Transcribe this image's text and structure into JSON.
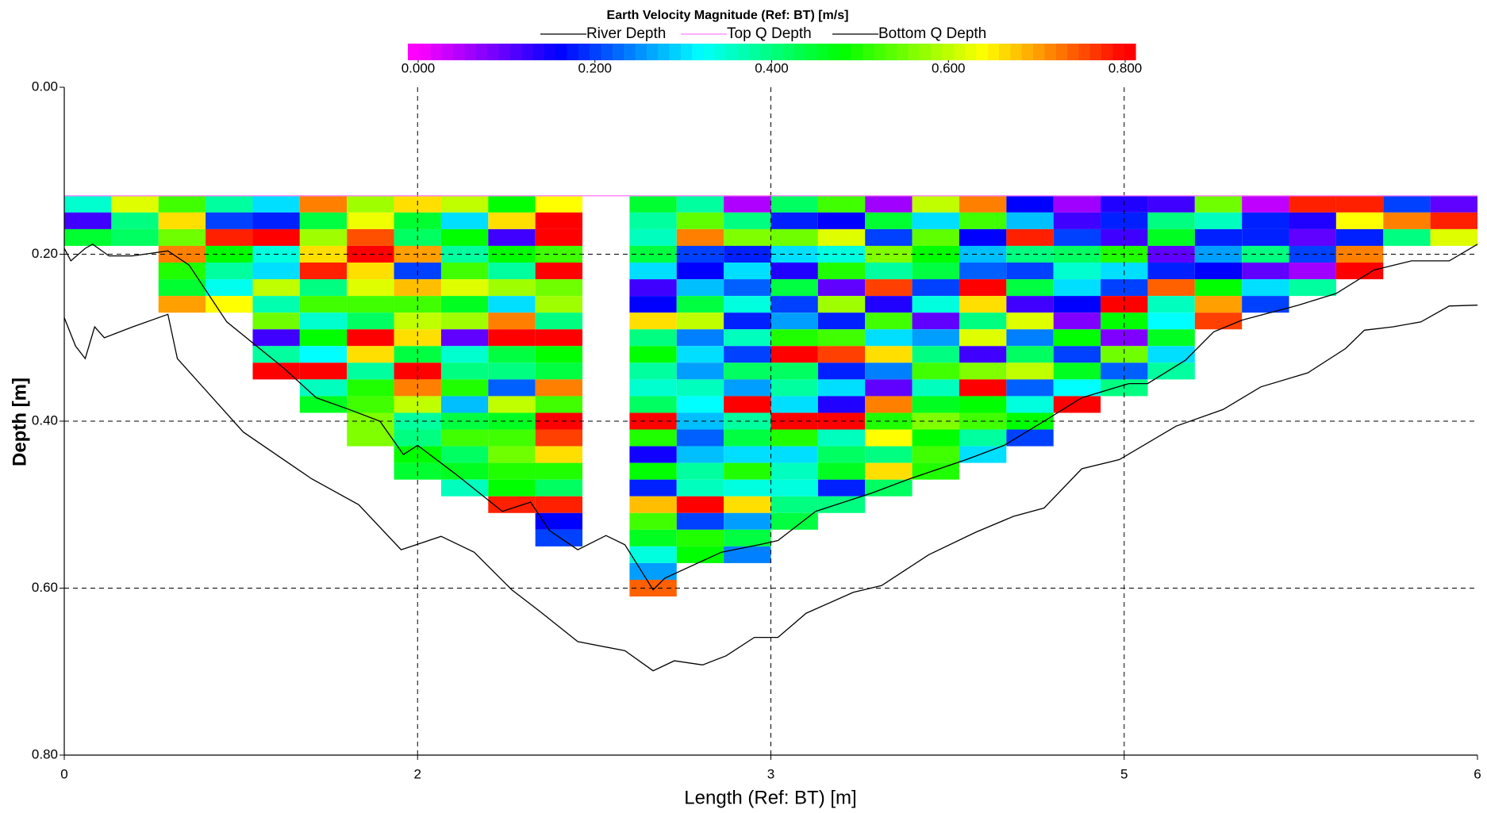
{
  "chart_data": {
    "type": "heatmap",
    "title": "Earth Velocity Magnitude (Ref: BT) [m/s]",
    "x_label": "Length (Ref: BT) [m]",
    "y_label": "Depth [m]",
    "xlim": [
      0,
      6
    ],
    "ylim": [
      0.8,
      0
    ],
    "xticks": [
      0,
      {
        "value": 1.5,
        "label": "2"
      },
      3,
      {
        "value": 4.5,
        "label": "5"
      },
      6
    ],
    "yticks": [
      {
        "value": 0,
        "label": "0.00"
      },
      {
        "value": 0.2,
        "label": "0.20"
      },
      {
        "value": 0.4,
        "label": "0.40"
      },
      {
        "value": 0.6,
        "label": "0.60"
      },
      {
        "value": 0.8,
        "label": "0.80"
      }
    ],
    "grid": true,
    "clim": [
      0,
      0.8
    ],
    "colorscale": [
      "#ff00ff",
      "#0000ff",
      "#00ffff",
      "#00ff00",
      "#ffff00",
      "#ff0000"
    ],
    "cticks": [
      {
        "value": 0,
        "label": "0.000"
      },
      {
        "value": 0.2,
        "label": "0.200"
      },
      {
        "value": 0.4,
        "label": "0.400"
      },
      {
        "value": 0.6,
        "label": "0.600"
      },
      {
        "value": 0.8,
        "label": "0.800"
      }
    ],
    "x_edges": [
      0,
      0.2,
      0.4,
      0.6,
      0.8,
      1.0,
      1.2,
      1.4,
      1.6,
      1.8,
      2.0,
      2.2,
      2.4,
      2.6,
      2.8,
      3.0,
      3.2,
      3.4,
      3.6,
      3.8,
      4.0,
      4.2,
      4.4,
      4.6,
      4.8,
      5.0,
      5.2,
      5.4,
      5.6,
      5.8,
      6.0
    ],
    "y_edges": [
      0.13,
      0.15,
      0.17,
      0.19,
      0.21,
      0.23,
      0.25,
      0.27,
      0.29,
      0.31,
      0.33,
      0.35,
      0.37,
      0.39,
      0.41,
      0.43,
      0.45,
      0.47,
      0.49,
      0.51,
      0.53,
      0.55,
      0.57,
      0.59,
      0.61
    ],
    "values": [
      [
        0.35,
        0.12,
        0.45
      ],
      [
        0.62,
        0.4,
        0.42
      ],
      [
        0.52,
        0.66,
        0.55,
        0.72,
        0.5,
        0.45,
        0.7
      ],
      [
        0.38,
        0.2,
        0.78,
        0.48,
        0.38,
        0.33,
        0.64
      ],
      [
        0.3,
        0.18,
        0.8,
        0.34,
        0.3,
        0.6,
        0.37,
        0.55,
        0.12,
        0.38,
        0.8
      ],
      [
        0.72,
        0.44,
        0.58,
        0.66,
        0.78,
        0.4,
        0.52,
        0.35,
        0.48,
        0.32,
        0.8,
        0.36,
        0.46
      ],
      [
        0.58,
        0.63,
        0.75,
        0.8,
        0.66,
        0.62,
        0.52,
        0.42,
        0.8,
        0.66,
        0.38,
        0.5,
        0.52,
        0.56,
        0.56
      ],
      [
        0.66,
        0.45,
        0.42,
        0.7,
        0.2,
        0.68,
        0.52,
        0.6,
        0.66,
        0.44,
        0.8,
        0.72,
        0.6,
        0.38,
        0.4,
        0.48,
        0.45
      ],
      [
        0.6,
        0.3,
        0.48,
        0.38,
        0.52,
        0.62,
        0.46,
        0.58,
        0.1,
        0.35,
        0.4,
        0.5,
        0.28,
        0.44,
        0.52,
        0.42,
        0.46,
        0.36
      ],
      [
        0.48,
        0.66,
        0.12,
        0.48,
        0.38,
        0.58,
        0.3,
        0.72,
        0.8,
        0.44,
        0.4,
        0.22,
        0.6,
        0.46,
        0.52,
        0.55,
        0.5,
        0.48,
        0.78
      ],
      [
        0.64,
        0.8,
        0.8,
        0.52,
        0.8,
        0.55,
        0.58,
        0.4,
        0.8,
        0.48,
        0.44,
        0.72,
        0.52,
        0.8,
        0.76,
        0.66,
        0.5,
        0.42,
        0.78,
        0.16,
        0.2
      ],
      [],
      [
        0.45,
        0.38,
        0.36,
        0.44,
        0.3,
        0.12,
        0.16,
        0.66,
        0.4,
        0.48,
        0.38,
        0.35,
        0.42,
        0.8,
        0.5,
        0.15,
        0.48,
        0.18,
        0.68,
        0.52,
        0.46,
        0.34,
        0.26,
        0.74
      ],
      [
        0.38,
        0.54,
        0.72,
        0.2,
        0.16,
        0.28,
        0.44,
        0.6,
        0.24,
        0.3,
        0.26,
        0.36,
        0.32,
        0.28,
        0.22,
        0.28,
        0.38,
        0.36,
        0.8,
        0.2,
        0.5,
        0.48
      ],
      [
        0.05,
        0.4,
        0.56,
        0.18,
        0.3,
        0.22,
        0.34,
        0.18,
        0.36,
        0.2,
        0.42,
        0.26,
        0.8,
        0.38,
        0.44,
        0.3,
        0.5,
        0.34,
        0.66,
        0.26,
        0.44,
        0.24
      ],
      [
        0.42,
        0.18,
        0.55,
        0.3,
        0.14,
        0.44,
        0.2,
        0.26,
        0.5,
        0.8,
        0.42,
        0.38,
        0.3,
        0.8,
        0.5,
        0.3,
        0.36,
        0.34,
        0.4,
        0.44
      ],
      [
        0.52,
        0.16,
        0.62,
        0.34,
        0.5,
        0.1,
        0.58,
        0.18,
        0.52,
        0.76,
        0.18,
        0.3,
        0.14,
        0.8,
        0.36,
        0.42,
        0.46,
        0.18,
        0.4
      ],
      [
        0.06,
        0.45,
        0.2,
        0.56,
        0.38,
        0.76,
        0.14,
        0.52,
        0.3,
        0.66,
        0.24,
        0.1,
        0.72,
        0.5,
        0.64,
        0.4,
        0.66,
        0.42
      ],
      [
        0.6,
        0.3,
        0.54,
        0.48,
        0.44,
        0.2,
        0.34,
        0.1,
        0.26,
        0.4,
        0.52,
        0.36,
        0.46,
        0.56,
        0.48,
        0.52,
        0.5
      ],
      [
        0.72,
        0.52,
        0.16,
        0.28,
        0.22,
        0.8,
        0.66,
        0.4,
        0.62,
        0.12,
        0.56,
        0.8,
        0.48,
        0.52,
        0.38,
        0.3
      ],
      [
        0.16,
        0.28,
        0.78,
        0.4,
        0.2,
        0.44,
        0.12,
        0.62,
        0.24,
        0.42,
        0.6,
        0.22,
        0.34,
        0.48,
        0.2
      ],
      [
        0.06,
        0.12,
        0.2,
        0.42,
        0.35,
        0.3,
        0.16,
        0.08,
        0.48,
        0.2,
        0.46,
        0.32,
        0.8
      ],
      [
        0.14,
        0.18,
        0.12,
        0.5,
        0.3,
        0.2,
        0.8,
        0.48,
        0.08,
        0.55,
        0.22,
        0.4
      ],
      [
        0.12,
        0.4,
        0.46,
        0.1,
        0.18,
        0.74,
        0.36,
        0.32,
        0.46,
        0.3,
        0.38
      ],
      [
        0.55,
        0.36,
        0.18,
        0.26,
        0.16,
        0.48,
        0.7,
        0.76
      ],
      [
        0.04,
        0.18,
        0.18,
        0.4,
        0.1,
        0.3,
        0.2
      ],
      [
        0.78,
        0.14,
        0.1,
        0.2,
        0.06,
        0.38
      ],
      [
        0.78,
        0.64,
        0.18,
        0.72,
        0.8
      ],
      [
        0.2,
        0.72,
        0.4
      ],
      [
        0.1,
        0.78,
        0.62
      ]
    ],
    "series": [
      {
        "name": "River Depth",
        "color": "#000000",
        "x": [
          0,
          0.048,
          0.089,
          0.129,
          0.17,
          0.29,
          0.44,
          0.48,
          0.76,
          1.05,
          1.25,
          1.43,
          1.6,
          1.74,
          1.9,
          2.02,
          2.18,
          2.38,
          2.5,
          2.59,
          2.71,
          2.81,
          2.93,
          3.03,
          3.15,
          3.35,
          3.47,
          3.67,
          3.87,
          4.03,
          4.16,
          4.32,
          4.48,
          4.72,
          4.92,
          5.08,
          5.28,
          5.44,
          5.52,
          5.64,
          5.76,
          5.88,
          6.0
        ],
        "values": [
          0.276,
          0.31,
          0.325,
          0.287,
          0.3,
          0.287,
          0.272,
          0.325,
          0.413,
          0.469,
          0.5,
          0.554,
          0.538,
          0.557,
          0.602,
          0.628,
          0.664,
          0.675,
          0.699,
          0.687,
          0.692,
          0.681,
          0.659,
          0.659,
          0.63,
          0.605,
          0.597,
          0.56,
          0.533,
          0.514,
          0.504,
          0.457,
          0.446,
          0.406,
          0.386,
          0.359,
          0.342,
          0.313,
          0.291,
          0.287,
          0.281,
          0.262,
          0.261
        ]
      },
      {
        "name": "Top Q Depth",
        "color": "#ff80ff",
        "x": [
          0,
          6.0
        ],
        "values": [
          0.13,
          0.13
        ]
      },
      {
        "name": "Bottom Q Depth",
        "color": "#000000",
        "x": [
          0,
          0.028,
          0.089,
          0.12,
          0.19,
          0.29,
          0.44,
          0.53,
          0.69,
          0.93,
          1.07,
          1.21,
          1.34,
          1.44,
          1.5,
          1.66,
          1.86,
          1.98,
          2.06,
          2.18,
          2.3,
          2.38,
          2.5,
          2.55,
          2.79,
          2.95,
          3.03,
          3.19,
          3.43,
          3.59,
          3.83,
          3.99,
          4.16,
          4.32,
          4.52,
          4.6,
          4.76,
          4.88,
          5.0,
          5.24,
          5.4,
          5.56,
          5.72,
          5.88,
          6.0
        ],
        "values": [
          0.193,
          0.208,
          0.193,
          0.188,
          0.202,
          0.202,
          0.196,
          0.213,
          0.281,
          0.336,
          0.372,
          0.386,
          0.4,
          0.44,
          0.429,
          0.463,
          0.508,
          0.497,
          0.531,
          0.554,
          0.537,
          0.548,
          0.602,
          0.588,
          0.557,
          0.548,
          0.543,
          0.508,
          0.486,
          0.469,
          0.446,
          0.429,
          0.4,
          0.372,
          0.355,
          0.355,
          0.327,
          0.293,
          0.279,
          0.261,
          0.247,
          0.219,
          0.208,
          0.208,
          0.188
        ]
      }
    ]
  }
}
